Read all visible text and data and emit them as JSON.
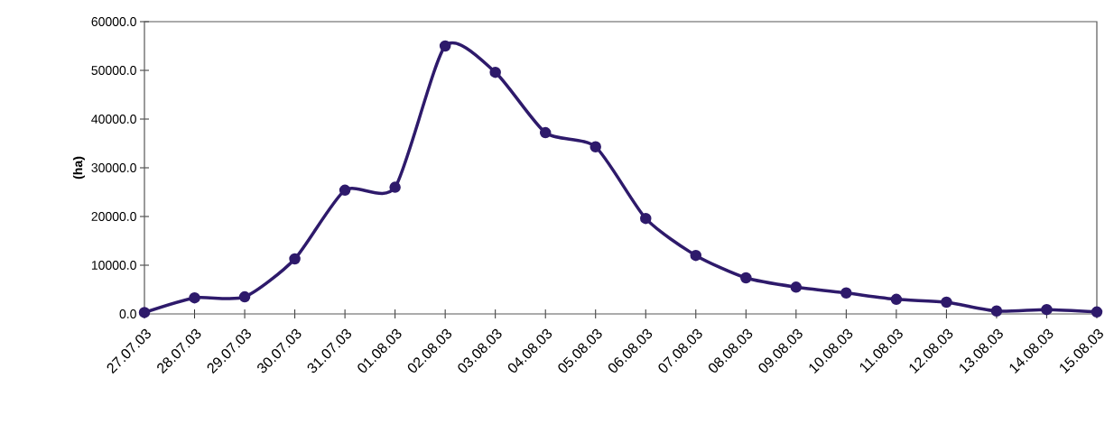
{
  "chart_data": {
    "type": "line",
    "ylabel": "(ha)",
    "categories": [
      "27.07.03",
      "28.07.03",
      "29.07.03",
      "30.07.03",
      "31.07.03",
      "01.08.03",
      "02.08.03",
      "03.08.03",
      "04.08.03",
      "05.08.03",
      "06.08.03",
      "07.08.03",
      "08.08.03",
      "09.08.03",
      "10.08.03",
      "11.08.03",
      "12.08.03",
      "13.08.03",
      "14.08.03",
      "15.08.03"
    ],
    "series": [
      {
        "color": "#2e1a6b",
        "values": [
          300,
          3300,
          3500,
          11300,
          25400,
          26000,
          55000,
          49600,
          37200,
          34300,
          19600,
          12000,
          7400,
          5500,
          4300,
          3000,
          2400,
          600,
          900,
          400
        ]
      }
    ],
    "ylim": [
      0,
      60000
    ],
    "yticks": [
      {
        "value": 0,
        "label": "0.0"
      },
      {
        "value": 10000,
        "label": "10000.0"
      },
      {
        "value": 20000,
        "label": "20000.0"
      },
      {
        "value": 30000,
        "label": "30000.0"
      },
      {
        "value": 40000,
        "label": "40000.0"
      },
      {
        "value": 50000,
        "label": "50000.0"
      },
      {
        "value": 60000,
        "label": "60000.0"
      }
    ],
    "grid": false,
    "marker": "circle",
    "line_style": "solid"
  }
}
